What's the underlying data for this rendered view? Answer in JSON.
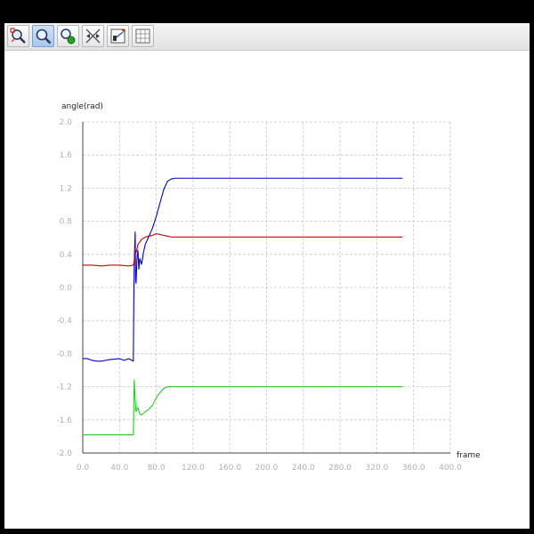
{
  "toolbar": {
    "buttons": [
      {
        "id": "zoom-box",
        "icon": "zoom-box-icon",
        "active": false
      },
      {
        "id": "zoom",
        "icon": "magnifier-icon",
        "active": true
      },
      {
        "id": "pan",
        "icon": "pan-icon",
        "active": false
      },
      {
        "id": "fit",
        "icon": "fit-axes-icon",
        "active": false
      },
      {
        "id": "edit",
        "icon": "edit-chart-icon",
        "active": false
      },
      {
        "id": "grid",
        "icon": "grid-icon",
        "active": false
      }
    ]
  },
  "chart_data": {
    "type": "line",
    "title": "",
    "xlabel": "frame",
    "ylabel": "angle(rad)",
    "xlim": [
      0,
      400
    ],
    "ylim": [
      -2.0,
      2.0
    ],
    "x_ticks": [
      "0.0",
      "40.0",
      "80.0",
      "120.0",
      "160.0",
      "200.0",
      "240.0",
      "280.0",
      "320.0",
      "360.0",
      "400.0"
    ],
    "y_ticks": [
      "2.0",
      "1.6",
      "1.2",
      "0.8",
      "0.4",
      "0.0",
      "-0.4",
      "-0.8",
      "-1.2",
      "-1.6",
      "-2.0"
    ],
    "grid": true,
    "series": [
      {
        "color": "#0000cc",
        "points": [
          [
            0,
            -0.86
          ],
          [
            5,
            -0.86
          ],
          [
            10,
            -0.88
          ],
          [
            15,
            -0.89
          ],
          [
            20,
            -0.89
          ],
          [
            30,
            -0.87
          ],
          [
            40,
            -0.86
          ],
          [
            45,
            -0.88
          ],
          [
            50,
            -0.86
          ],
          [
            55,
            -0.89
          ],
          [
            55.5,
            -0.2
          ],
          [
            56,
            0.3
          ],
          [
            57,
            0.67
          ],
          [
            57.5,
            0.1
          ],
          [
            58,
            0.05
          ],
          [
            59,
            0.35
          ],
          [
            60,
            0.45
          ],
          [
            61,
            0.22
          ],
          [
            62,
            0.35
          ],
          [
            64,
            0.28
          ],
          [
            66,
            0.42
          ],
          [
            68,
            0.52
          ],
          [
            72,
            0.62
          ],
          [
            76,
            0.72
          ],
          [
            80,
            0.86
          ],
          [
            84,
            1.02
          ],
          [
            88,
            1.18
          ],
          [
            92,
            1.28
          ],
          [
            96,
            1.31
          ],
          [
            100,
            1.32
          ],
          [
            150,
            1.32
          ],
          [
            200,
            1.32
          ],
          [
            250,
            1.32
          ],
          [
            300,
            1.32
          ],
          [
            348,
            1.32
          ]
        ]
      },
      {
        "color": "#cc0000",
        "points": [
          [
            0,
            0.27
          ],
          [
            10,
            0.27
          ],
          [
            20,
            0.26
          ],
          [
            30,
            0.27
          ],
          [
            40,
            0.27
          ],
          [
            50,
            0.26
          ],
          [
            55,
            0.27
          ],
          [
            56,
            0.32
          ],
          [
            57,
            0.47
          ],
          [
            58,
            0.42
          ],
          [
            60,
            0.52
          ],
          [
            64,
            0.58
          ],
          [
            68,
            0.61
          ],
          [
            72,
            0.62
          ],
          [
            76,
            0.63
          ],
          [
            80,
            0.65
          ],
          [
            84,
            0.64
          ],
          [
            88,
            0.63
          ],
          [
            92,
            0.62
          ],
          [
            96,
            0.61
          ],
          [
            100,
            0.61
          ],
          [
            150,
            0.61
          ],
          [
            200,
            0.61
          ],
          [
            250,
            0.61
          ],
          [
            300,
            0.61
          ],
          [
            348,
            0.61
          ]
        ]
      },
      {
        "color": "#22cc22",
        "points": [
          [
            0,
            -1.78
          ],
          [
            10,
            -1.78
          ],
          [
            20,
            -1.78
          ],
          [
            30,
            -1.78
          ],
          [
            40,
            -1.78
          ],
          [
            50,
            -1.78
          ],
          [
            55,
            -1.78
          ],
          [
            55.5,
            -1.4
          ],
          [
            56,
            -1.12
          ],
          [
            57,
            -1.35
          ],
          [
            58,
            -1.5
          ],
          [
            60,
            -1.45
          ],
          [
            62,
            -1.53
          ],
          [
            64,
            -1.54
          ],
          [
            68,
            -1.5
          ],
          [
            72,
            -1.47
          ],
          [
            76,
            -1.42
          ],
          [
            80,
            -1.33
          ],
          [
            84,
            -1.27
          ],
          [
            88,
            -1.22
          ],
          [
            92,
            -1.2
          ],
          [
            96,
            -1.2
          ],
          [
            150,
            -1.2
          ],
          [
            200,
            -1.2
          ],
          [
            250,
            -1.2
          ],
          [
            300,
            -1.2
          ],
          [
            348,
            -1.2
          ]
        ]
      }
    ]
  }
}
